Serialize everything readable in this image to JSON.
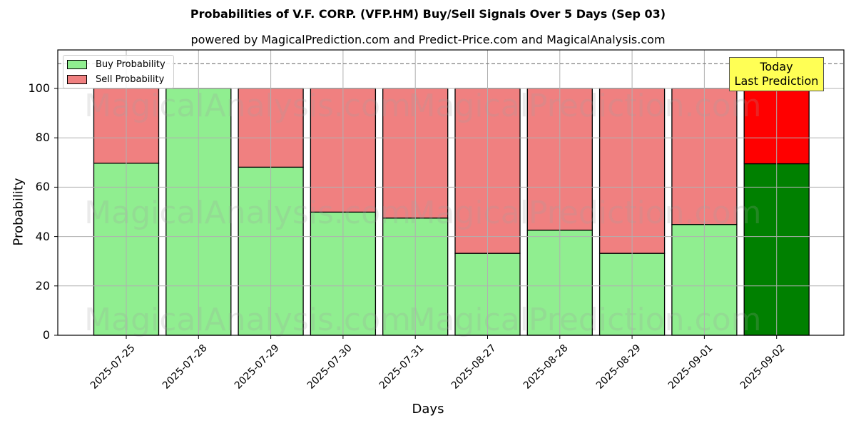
{
  "chart_data": {
    "type": "bar",
    "stacked": true,
    "title": "Probabilities of V.F. CORP. (VFP.HM) Buy/Sell Signals Over 5 Days (Sep 03)",
    "subtitle": "powered by MagicalPrediction.com and Predict-Price.com and MagicalAnalysis.com",
    "xlabel": "Days",
    "ylabel": "Probability",
    "ylim": [
      0,
      115
    ],
    "yticks": [
      0,
      20,
      40,
      60,
      80,
      100
    ],
    "grid": true,
    "legend_position": "upper left",
    "categories": [
      "2025-07-25",
      "2025-07-28",
      "2025-07-29",
      "2025-07-30",
      "2025-07-31",
      "2025-08-27",
      "2025-08-28",
      "2025-08-29",
      "2025-09-01",
      "2025-09-02"
    ],
    "series": [
      {
        "name": "Buy Probability",
        "color": "#90ee90",
        "values": [
          69.7,
          100.0,
          68.1,
          49.9,
          47.5,
          33.2,
          42.6,
          33.2,
          44.9,
          69.5
        ]
      },
      {
        "name": "Sell Probability",
        "color": "#f08080",
        "values": [
          30.3,
          0.0,
          31.9,
          50.1,
          52.5,
          66.8,
          57.4,
          66.8,
          55.1,
          30.5
        ]
      }
    ],
    "highlight": {
      "category": "2025-09-02",
      "buy_color": "#008000",
      "sell_color": "#ff0000"
    },
    "reference_line": {
      "y": 110,
      "style": "dashed",
      "color": "#808080"
    },
    "annotation": {
      "text_line1": "Today",
      "text_line2": "Last Prediction",
      "background": "#ffff55"
    },
    "watermarks": [
      "MagicalAnalysis.com",
      "MagicalPrediction.com"
    ]
  },
  "legend": {
    "buy_label": "Buy Probability",
    "sell_label": "Sell Probability"
  }
}
